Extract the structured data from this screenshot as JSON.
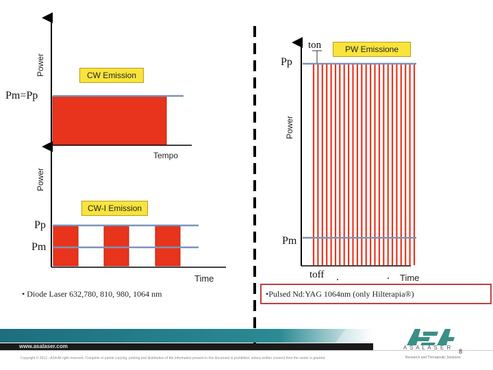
{
  "colors": {
    "pulse_red": "#e8341c",
    "pulse_stroke": "#b02010",
    "level_line": "#7a93b8",
    "axis": "#000000",
    "label_box": "#f9e43c",
    "bullet_border": "#c04040",
    "footer_teal": "#1d6e7e",
    "logo_green": "#3a8f86"
  },
  "cw_panel": {
    "y_axis_label": "Power",
    "box_label": "CW Emission",
    "level_label": "Pm=Pp",
    "x_axis_label": "Tempo"
  },
  "cwi_panel": {
    "y_axis_label": "Power",
    "box_label": "CW-I Emission",
    "pp_label": "Pp",
    "pm_label": "Pm",
    "x_axis_label": "Time",
    "bullet": "• Diode Laser 632,780, 810, 980, 1064 nm"
  },
  "pw_panel": {
    "y_axis_label": "Power",
    "box_label": "PW Emissione",
    "pp_label": "Pp",
    "pm_label": "Pm",
    "ton_label": "ton",
    "toff_label": "toff",
    "x_axis_label": "Time",
    "bullet": "•Pulsed Nd:YAG 1064nm (only Hilterapia®)"
  },
  "footer": {
    "website": "www.asalaser.com",
    "copyright": "Copyright © 2012 - ASA All right reserved. Complete or partial copying, printing and distribution of the information present in this document is prohibited, unless written consent from the owner is granted.",
    "logo_text": "ASA",
    "brand": "A S A L A S E R",
    "tagline": "Research and Therapeutic Solutions",
    "page_number": "8"
  },
  "icons": {
    "logo": "asa-logo-icon"
  }
}
